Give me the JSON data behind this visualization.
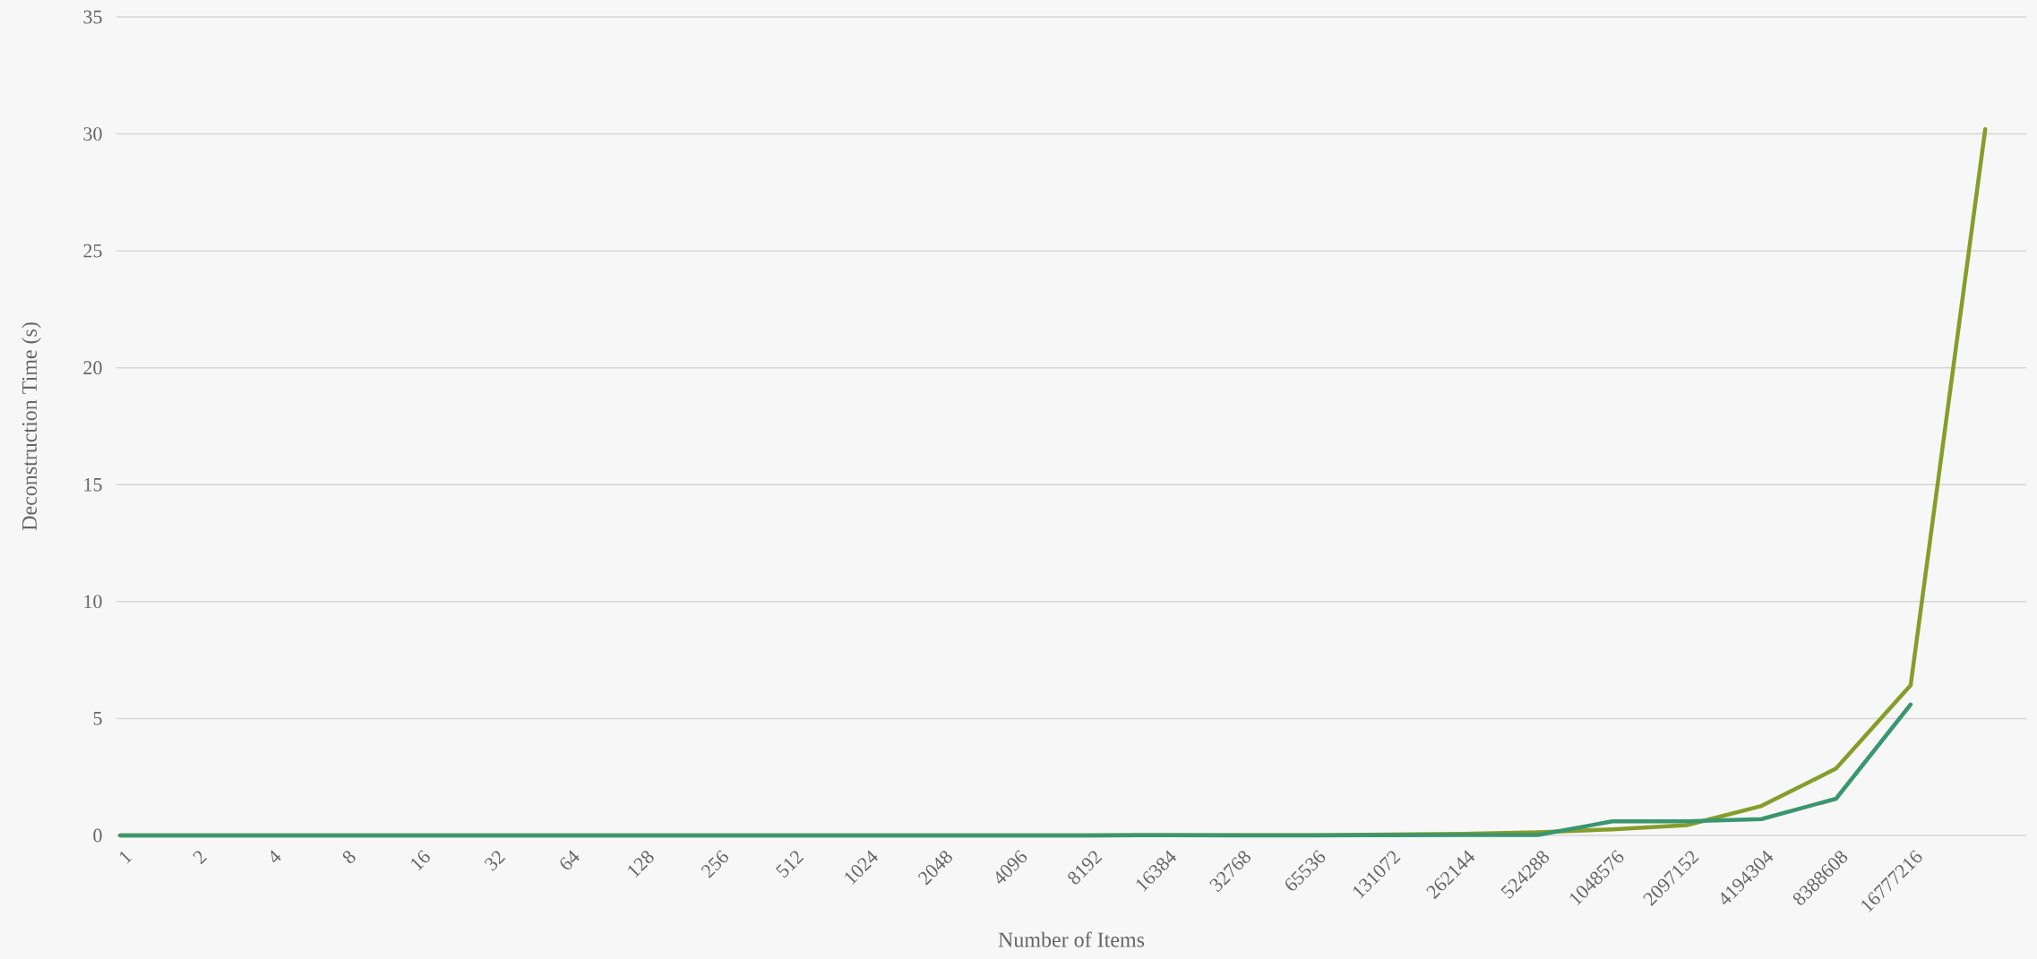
{
  "chart_data": {
    "type": "line",
    "xlabel": "Number of Items",
    "ylabel": "Deconstruction Time (s)",
    "categories": [
      "1",
      "2",
      "4",
      "8",
      "16",
      "32",
      "64",
      "128",
      "256",
      "512",
      "1024",
      "2048",
      "4096",
      "8192",
      "16384",
      "32768",
      "65536",
      "131072",
      "262144",
      "524288",
      "1048576",
      "2097152",
      "4194304",
      "8388608",
      "16777216",
      null
    ],
    "series": [
      {
        "color": "#869d2a",
        "values": [
          0,
          0,
          0,
          0,
          0,
          0,
          0,
          0,
          0,
          0,
          0,
          0,
          0,
          0,
          0.01,
          0.01,
          0.01,
          0.04,
          0.07,
          0.13,
          0.26,
          0.44,
          1.26,
          2.86,
          6.42,
          30.2
        ]
      },
      {
        "color": "#3a9670",
        "values": [
          0,
          0,
          0,
          0,
          0,
          0,
          0,
          0,
          0,
          0,
          0,
          0,
          0,
          0,
          0.01,
          0,
          0,
          0.01,
          0.02,
          0.02,
          0.6,
          0.6,
          0.7,
          1.57,
          5.6,
          null
        ]
      }
    ],
    "ylim": [
      0,
      35
    ],
    "yticks": [
      0,
      5,
      10,
      15,
      20,
      25,
      30,
      35
    ],
    "grid": "y"
  }
}
